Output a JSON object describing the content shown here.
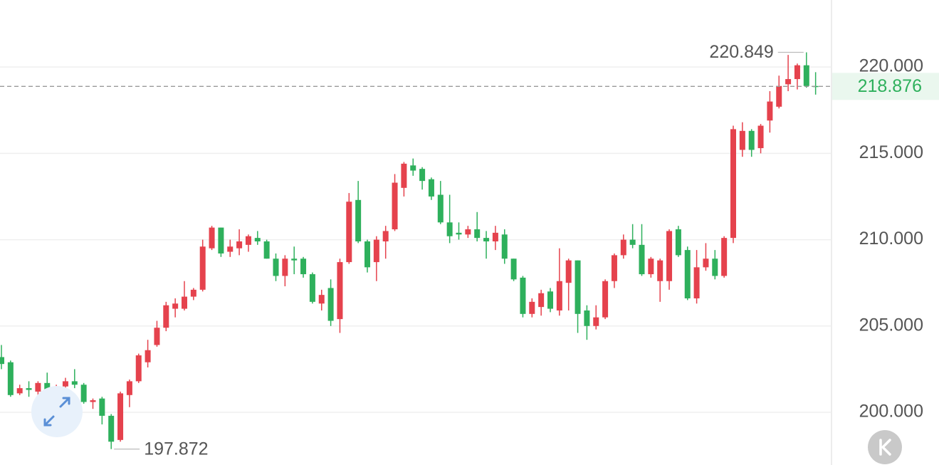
{
  "chart_data": {
    "type": "candlestick",
    "up_color": "#e5424d",
    "down_color": "#2eb05c",
    "grid": true,
    "ylim": [
      196.95,
      223.88
    ],
    "yticks": [
      {
        "value": 200,
        "label": "200.000"
      },
      {
        "value": 205,
        "label": "205.000"
      },
      {
        "value": 210,
        "label": "210.000"
      },
      {
        "value": 215,
        "label": "215.000"
      },
      {
        "value": 220,
        "label": "220.000"
      }
    ],
    "max_price": 220.849,
    "min_price": 197.872,
    "last_price": 218.876,
    "open": [
      203.2,
      202.9,
      201.1,
      201.4,
      201.2,
      201.7,
      200.9,
      201.5,
      201.8,
      201.6,
      200.6,
      200.8,
      199.8,
      198.4,
      201.0,
      201.8,
      202.9,
      203.9,
      204.9,
      206.0,
      206.0,
      206.7,
      207.1,
      209.5,
      210.7,
      209.3,
      209.5,
      209.7,
      210.1,
      209.9,
      208.9,
      207.9,
      208.9,
      208.9,
      208.0,
      206.3,
      207.2,
      205.4,
      208.7,
      212.3,
      209.9,
      208.7,
      209.9,
      210.6,
      213.0,
      214.3,
      214.1,
      213.5,
      212.6,
      211.0,
      210.4,
      210.3,
      210.6,
      210.1,
      209.9,
      210.3,
      208.9,
      207.8,
      205.7,
      206.1,
      207.0,
      205.9,
      207.5,
      208.8,
      205.9,
      205.0,
      205.5,
      207.6,
      209.1,
      210.0,
      209.7,
      208.0,
      207.6,
      207.6,
      210.6,
      209.4,
      206.6,
      208.4,
      208.9,
      207.9,
      210.1,
      215.2,
      216.3,
      215.3,
      216.9,
      217.7,
      219.0,
      219.3,
      220.1,
      218.9
    ],
    "high": [
      203.9,
      203.0,
      201.6,
      201.8,
      201.8,
      202.3,
      201.6,
      202.0,
      202.5,
      201.7,
      200.8,
      200.9,
      199.9,
      201.2,
      201.9,
      203.4,
      204.2,
      205.3,
      206.4,
      206.6,
      207.6,
      207.2,
      210.0,
      210.8,
      210.7,
      210.0,
      210.6,
      210.3,
      210.5,
      210.0,
      209.2,
      209.1,
      209.6,
      209.0,
      208.1,
      207.1,
      207.7,
      208.9,
      212.7,
      213.4,
      210.0,
      210.2,
      210.8,
      213.8,
      214.5,
      214.7,
      214.2,
      213.6,
      213.4,
      212.6,
      211.0,
      210.8,
      211.6,
      210.5,
      210.8,
      210.6,
      208.9,
      207.9,
      206.6,
      207.1,
      207.2,
      209.5,
      208.9,
      208.8,
      206.2,
      206.2,
      207.7,
      209.2,
      210.3,
      210.9,
      210.9,
      209.0,
      208.9,
      210.6,
      210.8,
      209.6,
      209.4,
      209.8,
      209.4,
      210.2,
      216.6,
      216.8,
      216.4,
      216.7,
      218.6,
      219.5,
      220.7,
      220.2,
      220.849,
      219.7
    ],
    "low": [
      202.5,
      200.9,
      201.0,
      200.9,
      201.0,
      201.0,
      200.5,
      201.2,
      201.4,
      200.5,
      200.2,
      199.3,
      197.872,
      198.3,
      200.3,
      201.7,
      202.6,
      203.8,
      204.7,
      205.5,
      205.9,
      206.5,
      207.0,
      209.4,
      209.0,
      209.0,
      209.1,
      209.3,
      209.7,
      208.9,
      207.6,
      207.3,
      208.0,
      207.8,
      206.3,
      205.9,
      205.0,
      204.6,
      208.6,
      209.8,
      208.1,
      207.6,
      208.9,
      210.5,
      212.5,
      213.7,
      212.9,
      212.3,
      210.9,
      209.8,
      210.0,
      210.1,
      209.9,
      208.9,
      209.4,
      208.6,
      207.6,
      205.5,
      205.5,
      205.6,
      205.8,
      205.6,
      205.9,
      204.6,
      204.2,
      204.8,
      205.4,
      207.2,
      208.9,
      209.5,
      207.9,
      207.8,
      206.4,
      207.1,
      209.0,
      206.5,
      206.3,
      208.2,
      207.7,
      207.8,
      209.8,
      214.8,
      214.8,
      215.0,
      216.2,
      217.6,
      218.6,
      218.7,
      218.8,
      218.4
    ],
    "close": [
      202.8,
      201.0,
      201.4,
      201.3,
      201.7,
      201.2,
      201.5,
      201.8,
      201.6,
      200.6,
      200.7,
      199.8,
      198.3,
      201.1,
      201.8,
      203.3,
      203.6,
      204.9,
      206.2,
      206.3,
      206.7,
      207.1,
      209.6,
      210.7,
      209.2,
      209.6,
      209.9,
      210.2,
      209.9,
      208.9,
      207.9,
      208.9,
      208.8,
      208.0,
      206.4,
      206.8,
      205.3,
      208.7,
      212.2,
      209.9,
      208.4,
      210.0,
      210.5,
      213.3,
      214.4,
      214.0,
      213.4,
      212.5,
      211.0,
      210.2,
      210.3,
      210.6,
      210.1,
      209.9,
      210.4,
      208.9,
      207.7,
      205.7,
      206.4,
      206.9,
      206.0,
      207.6,
      208.8,
      205.7,
      205.0,
      205.5,
      207.6,
      209.1,
      210.0,
      209.7,
      208.0,
      208.9,
      208.8,
      210.5,
      209.1,
      206.6,
      208.4,
      208.9,
      207.9,
      210.1,
      216.4,
      216.3,
      215.2,
      216.6,
      218.0,
      218.9,
      219.3,
      220.1,
      218.9,
      218.876
    ]
  }
}
